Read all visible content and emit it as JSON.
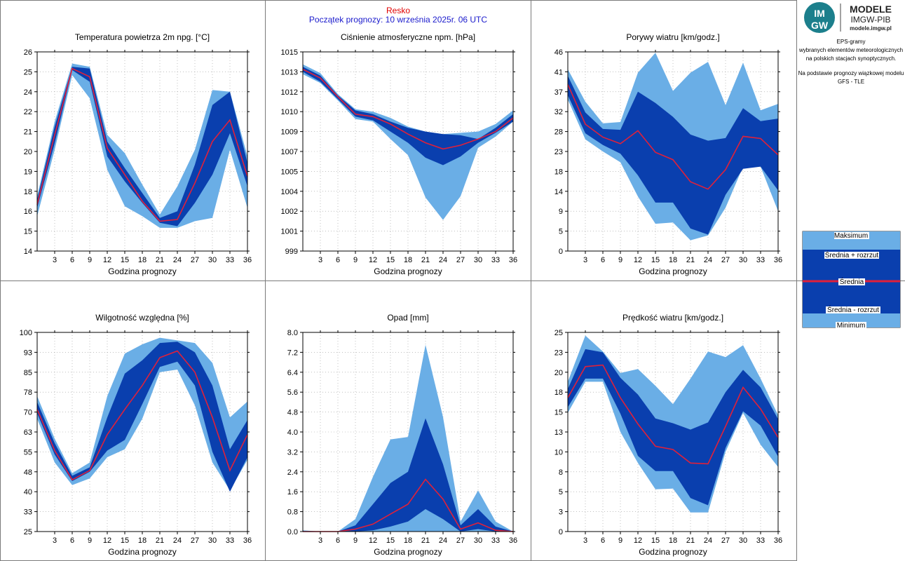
{
  "header": {
    "station": "Resko",
    "start": "Początek prognozy: 10 września 2025r. 06 UTC"
  },
  "logo": {
    "badge_top": "IM",
    "badge_bottom": "GW",
    "line1": "MODELE",
    "line2": "IMGW-PIB",
    "line3": "modele.imgw.pl"
  },
  "description": [
    "EPS-gramy",
    "wybranych elementów meteorologicznych",
    "na polskich stacjach  synoptycznych.",
    "",
    "Na podstawie prognozy wiązkowej modelu",
    "GFS - TLE"
  ],
  "legend": {
    "max": "Maksimum",
    "plus": "Średnia + rozrzut",
    "mean": "Średnia",
    "minus": "Średnia - rozrzut",
    "min": "Minimum"
  },
  "colors": {
    "outer": "#6aaee6",
    "inner": "#0a3fae",
    "mean": "#e0203a",
    "grid": "#9a9a9a"
  },
  "chart_data": [
    {
      "id": "temp",
      "type": "area",
      "title": "Temperatura powietrza 2m npg. [°C]",
      "xlabel": "Godzina prognozy",
      "x": [
        0,
        3,
        6,
        9,
        12,
        15,
        18,
        21,
        24,
        27,
        30,
        33,
        36
      ],
      "xticks": [
        3,
        6,
        9,
        12,
        15,
        18,
        21,
        24,
        27,
        30,
        33,
        36
      ],
      "ylim": [
        14,
        26
      ],
      "yticks": [
        "14",
        "15",
        "16",
        "18",
        "19",
        "20",
        "21",
        "22",
        "24",
        "25",
        "26"
      ],
      "series": [
        {
          "role": "max",
          "values": [
            17.3,
            21.8,
            25.3,
            25.1,
            21.0,
            19.9,
            18.0,
            16.2,
            17.9,
            20.1,
            23.7,
            23.6,
            19.7
          ]
        },
        {
          "role": "plus",
          "values": [
            17.1,
            21.5,
            25.1,
            25.0,
            20.6,
            19.0,
            17.5,
            16.0,
            16.4,
            19.2,
            22.8,
            23.6,
            19.3
          ]
        },
        {
          "role": "mean",
          "values": [
            16.8,
            21.0,
            25.0,
            24.5,
            20.2,
            18.6,
            17.0,
            15.8,
            15.9,
            18.1,
            20.6,
            21.9,
            18.5
          ]
        },
        {
          "role": "minus",
          "values": [
            16.6,
            20.5,
            24.9,
            24.2,
            19.7,
            18.2,
            16.9,
            15.7,
            15.5,
            16.9,
            18.6,
            21.1,
            17.9
          ]
        },
        {
          "role": "min",
          "values": [
            16.1,
            20.1,
            24.6,
            23.2,
            18.9,
            16.7,
            16.1,
            15.4,
            15.4,
            15.8,
            16.0,
            20.1,
            16.6
          ]
        }
      ]
    },
    {
      "id": "pressure",
      "type": "area",
      "title": "Ciśnienie atmosferyczne npm. [hPa]",
      "xlabel": "Godzina prognozy",
      "x": [
        0,
        3,
        6,
        9,
        12,
        15,
        18,
        21,
        24,
        27,
        30,
        33,
        36
      ],
      "xticks": [
        3,
        6,
        9,
        12,
        15,
        18,
        21,
        24,
        27,
        30,
        33,
        36
      ],
      "ylim": [
        999,
        1015
      ],
      "yticks": [
        "999",
        "1001",
        "1002",
        "1004",
        "1005",
        "1007",
        "1009",
        "1010",
        "1012",
        "1013",
        "1015"
      ],
      "series": [
        {
          "role": "max",
          "values": [
            1014.0,
            1013.3,
            1011.6,
            1010.4,
            1010.2,
            1009.7,
            1009.0,
            1008.6,
            1008.4,
            1008.5,
            1008.6,
            1009.2,
            1010.3
          ]
        },
        {
          "role": "plus",
          "values": [
            1013.8,
            1013.1,
            1011.5,
            1010.3,
            1010.0,
            1009.4,
            1008.9,
            1008.6,
            1008.4,
            1008.3,
            1008.0,
            1008.9,
            1010.0
          ]
        },
        {
          "role": "mean",
          "values": [
            1013.6,
            1012.9,
            1011.4,
            1010.0,
            1009.8,
            1009.2,
            1008.4,
            1007.7,
            1007.2,
            1007.5,
            1008.0,
            1008.6,
            1009.7
          ]
        },
        {
          "role": "minus",
          "values": [
            1013.4,
            1012.6,
            1011.2,
            1009.8,
            1009.5,
            1008.6,
            1007.7,
            1006.5,
            1005.9,
            1006.6,
            1007.7,
            1008.5,
            1009.4
          ]
        },
        {
          "role": "min",
          "values": [
            1013.2,
            1012.5,
            1011.1,
            1009.6,
            1009.4,
            1008.0,
            1006.7,
            1003.3,
            1001.5,
            1003.4,
            1007.3,
            1008.2,
            1009.4
          ]
        }
      ]
    },
    {
      "id": "gusts",
      "type": "area",
      "title": "Porywy wiatru [km/godz.]",
      "xlabel": "Godzina prognozy",
      "x": [
        0,
        3,
        6,
        9,
        12,
        15,
        18,
        21,
        24,
        27,
        30,
        33,
        36
      ],
      "xticks": [
        3,
        6,
        9,
        12,
        15,
        18,
        21,
        24,
        27,
        30,
        33,
        36
      ],
      "ylim": [
        0,
        46
      ],
      "yticks": [
        "0",
        "5",
        "9",
        "14",
        "18",
        "23",
        "28",
        "32",
        "37",
        "41",
        "46"
      ],
      "series": [
        {
          "role": "max",
          "values": [
            42.0,
            34.5,
            29.5,
            29.8,
            41.2,
            45.8,
            37.0,
            41.2,
            43.7,
            33.7,
            43.5,
            32.5,
            34.0
          ]
        },
        {
          "role": "plus",
          "values": [
            40.5,
            32.0,
            28.2,
            28.0,
            36.8,
            34.2,
            31.0,
            26.9,
            25.5,
            26.1,
            33.0,
            30.0,
            30.6
          ]
        },
        {
          "role": "mean",
          "values": [
            38.5,
            29.3,
            26.3,
            24.8,
            27.8,
            22.8,
            21.1,
            16.0,
            14.3,
            18.8,
            26.5,
            26.0,
            22.2
          ]
        },
        {
          "role": "minus",
          "values": [
            36.0,
            27.2,
            24.5,
            22.5,
            17.5,
            11.2,
            11.2,
            5.2,
            3.8,
            13.0,
            19.0,
            19.5,
            14.0
          ]
        },
        {
          "role": "min",
          "values": [
            35.0,
            25.8,
            23.0,
            20.5,
            12.6,
            6.3,
            6.6,
            2.5,
            3.6,
            10.0,
            19.5,
            19.5,
            9.2
          ]
        }
      ]
    },
    {
      "id": "humidity",
      "type": "area",
      "title": "Wilgotność względna [%]",
      "xlabel": "Godzina prognozy",
      "x": [
        0,
        3,
        6,
        9,
        12,
        15,
        18,
        21,
        24,
        27,
        30,
        33,
        36
      ],
      "xticks": [
        3,
        6,
        9,
        12,
        15,
        18,
        21,
        24,
        27,
        30,
        33,
        36
      ],
      "ylim": [
        25,
        100
      ],
      "yticks": [
        "25",
        "33",
        "40",
        "48",
        "55",
        "63",
        "70",
        "78",
        "85",
        "93",
        "100"
      ],
      "series": [
        {
          "role": "max",
          "values": [
            76.0,
            60.0,
            47.0,
            51.0,
            76.0,
            92.0,
            95.5,
            98.0,
            97.0,
            96.0,
            88.5,
            68.0,
            74.0
          ]
        },
        {
          "role": "plus",
          "values": [
            73.8,
            58.3,
            46.0,
            49.2,
            68.0,
            84.5,
            89.5,
            96.0,
            96.5,
            92.5,
            80.0,
            56.0,
            67.0
          ]
        },
        {
          "role": "mean",
          "values": [
            71.0,
            55.5,
            44.5,
            48.0,
            61.5,
            71.0,
            80.0,
            90.5,
            93.0,
            85.0,
            68.0,
            48.0,
            61.5
          ]
        },
        {
          "role": "minus",
          "values": [
            69.5,
            54.0,
            44.0,
            47.5,
            55.5,
            59.5,
            73.0,
            87.0,
            89.0,
            80.0,
            55.0,
            40.0,
            53.0
          ]
        },
        {
          "role": "min",
          "values": [
            67.5,
            51.0,
            42.5,
            45.0,
            53.0,
            56.0,
            67.5,
            85.0,
            86.0,
            72.5,
            51.0,
            40.5,
            52.0
          ]
        }
      ]
    },
    {
      "id": "precip",
      "type": "area",
      "title": "Opad [mm]",
      "xlabel": "Godzina prognozy",
      "x": [
        0,
        3,
        6,
        9,
        12,
        15,
        18,
        21,
        24,
        27,
        30,
        33,
        36
      ],
      "xticks": [
        3,
        6,
        9,
        12,
        15,
        18,
        21,
        24,
        27,
        30,
        33,
        36
      ],
      "ylim": [
        0,
        8
      ],
      "yticks": [
        "0.0",
        "0.8",
        "1.6",
        "2.4",
        "3.2",
        "4.0",
        "4.8",
        "5.6",
        "6.4",
        "7.2",
        "8.0"
      ],
      "series": [
        {
          "role": "max",
          "values": [
            0.05,
            0.0,
            0.0,
            0.5,
            2.2,
            3.7,
            3.8,
            7.5,
            4.6,
            0.4,
            1.65,
            0.4,
            0.0
          ]
        },
        {
          "role": "plus",
          "values": [
            0.0,
            0.0,
            0.0,
            0.25,
            1.1,
            1.95,
            2.4,
            4.55,
            2.7,
            0.25,
            0.9,
            0.2,
            0.0
          ]
        },
        {
          "role": "mean",
          "values": [
            0.0,
            0.0,
            0.0,
            0.1,
            0.3,
            0.7,
            1.1,
            2.1,
            1.3,
            0.1,
            0.35,
            0.05,
            0.0
          ]
        },
        {
          "role": "minus",
          "values": [
            0.0,
            0.0,
            0.0,
            0.0,
            0.05,
            0.2,
            0.4,
            0.9,
            0.5,
            0.0,
            0.1,
            0.0,
            0.0
          ]
        },
        {
          "role": "min",
          "values": [
            0.0,
            0.0,
            0.0,
            0.0,
            0.0,
            0.0,
            0.0,
            0.0,
            0.0,
            0.0,
            0.0,
            0.0,
            0.0
          ]
        }
      ]
    },
    {
      "id": "wind",
      "type": "area",
      "title": "Prędkość wiatru [km/godz.]",
      "xlabel": "Godzina prognozy",
      "x": [
        0,
        3,
        6,
        9,
        12,
        15,
        18,
        21,
        24,
        27,
        30,
        33,
        36
      ],
      "xticks": [
        3,
        6,
        9,
        12,
        15,
        18,
        21,
        24,
        27,
        30,
        33,
        36
      ],
      "ylim": [
        0,
        25
      ],
      "yticks": [
        "0",
        "3",
        "5",
        "8",
        "10",
        "13",
        "15",
        "18",
        "20",
        "23",
        "25"
      ],
      "series": [
        {
          "role": "max",
          "values": [
            18.8,
            24.6,
            22.6,
            19.9,
            20.4,
            18.3,
            16.0,
            19.2,
            22.6,
            21.9,
            23.4,
            19.2,
            14.6
          ]
        },
        {
          "role": "plus",
          "values": [
            17.9,
            22.9,
            22.5,
            19.3,
            17.2,
            14.2,
            13.6,
            12.8,
            13.7,
            17.5,
            20.3,
            18.1,
            14.1
          ]
        },
        {
          "role": "mean",
          "values": [
            16.8,
            20.7,
            20.9,
            16.8,
            13.5,
            10.7,
            10.3,
            8.6,
            8.5,
            13.2,
            18.1,
            15.4,
            11.8
          ]
        },
        {
          "role": "minus",
          "values": [
            15.6,
            19.2,
            19.2,
            14.8,
            9.5,
            7.6,
            7.6,
            4.2,
            3.3,
            10.5,
            15.1,
            13.3,
            9.4
          ]
        },
        {
          "role": "min",
          "values": [
            14.9,
            18.8,
            18.8,
            12.5,
            8.6,
            5.3,
            5.4,
            2.4,
            2.4,
            10.0,
            14.9,
            10.9,
            8.1
          ]
        }
      ]
    }
  ]
}
